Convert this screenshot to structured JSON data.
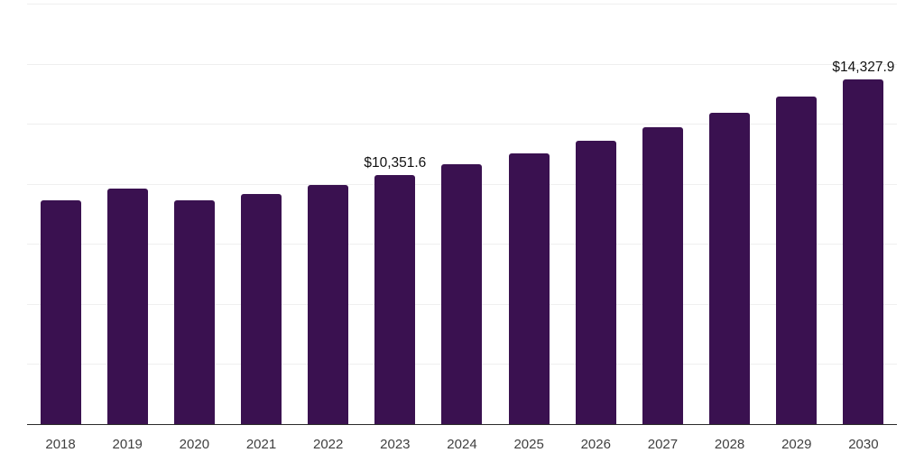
{
  "chart_data": {
    "type": "bar",
    "title": "",
    "xlabel": "",
    "ylabel": "",
    "categories": [
      "2018",
      "2019",
      "2020",
      "2021",
      "2022",
      "2023",
      "2024",
      "2025",
      "2026",
      "2027",
      "2028",
      "2029",
      "2030"
    ],
    "values": [
      9310,
      9800,
      9330,
      9590,
      9950,
      10351.6,
      10820,
      11250,
      11780,
      12340,
      12950,
      13620,
      14327.9
    ],
    "value_labels": {
      "2023": "$10,351.6",
      "2030": "$14,327.9"
    },
    "ylim": [
      0,
      17500
    ],
    "gridline_interval": 2500,
    "grid": "horizontal-only",
    "legend": "none",
    "y_axis_ticks_visible": false,
    "colors": {
      "bar": "#3A1150",
      "gridline": "#EFEFEF",
      "axis_line": "#2B2B2B",
      "tick_label": "#404040",
      "value_label": "#111111",
      "background": "#FFFFFF"
    }
  }
}
